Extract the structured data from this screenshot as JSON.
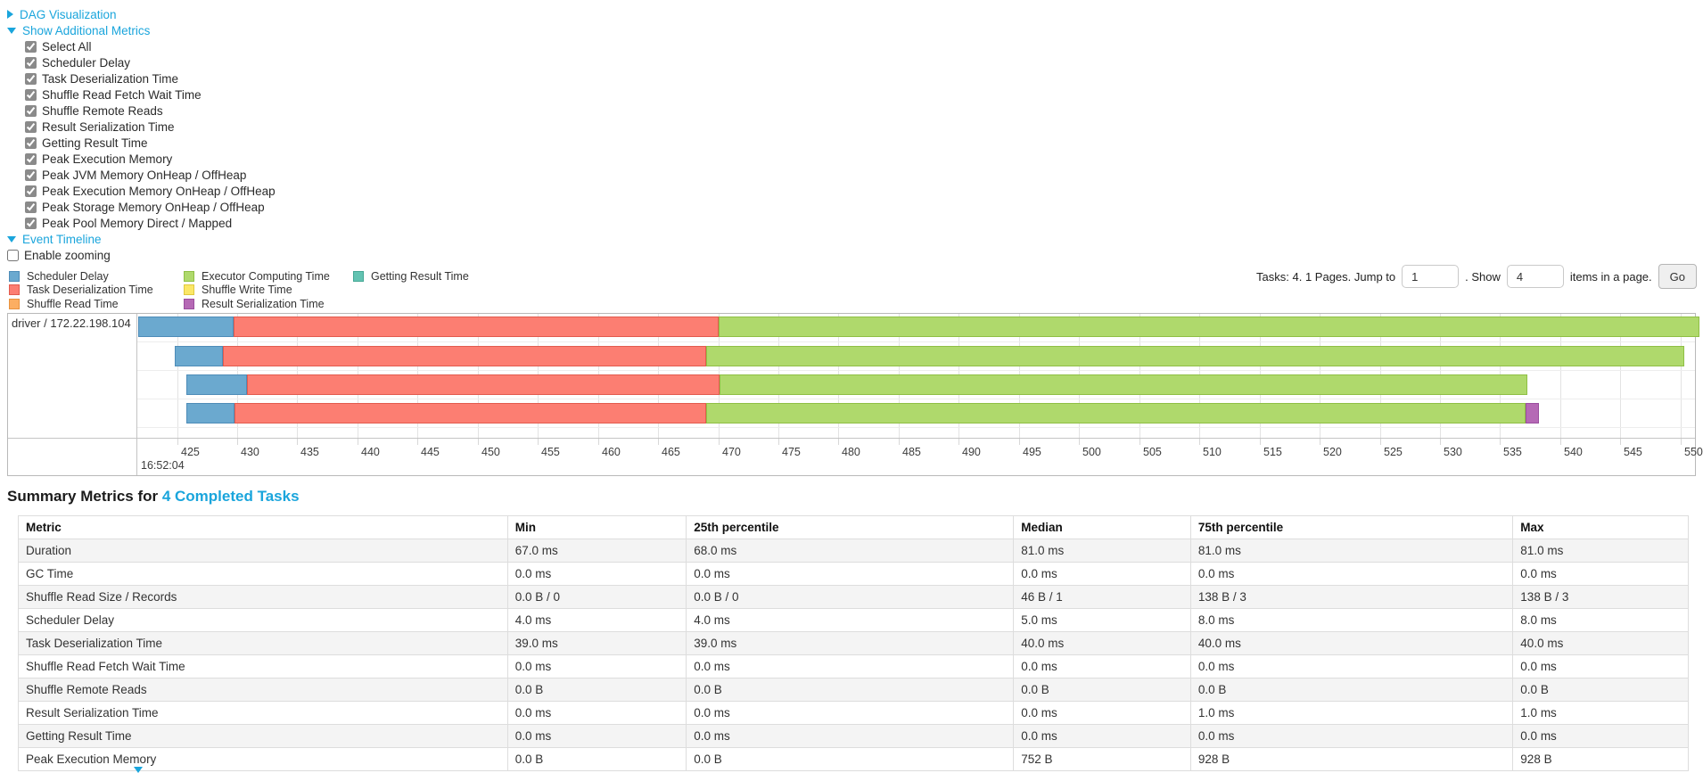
{
  "controls": {
    "dag_label": "DAG Visualization",
    "metrics_toggle_label": "Show Additional Metrics",
    "metrics_checkboxes": [
      "Select All",
      "Scheduler Delay",
      "Task Deserialization Time",
      "Shuffle Read Fetch Wait Time",
      "Shuffle Remote Reads",
      "Result Serialization Time",
      "Getting Result Time",
      "Peak Execution Memory",
      "Peak JVM Memory OnHeap / OffHeap",
      "Peak Execution Memory OnHeap / OffHeap",
      "Peak Storage Memory OnHeap / OffHeap",
      "Peak Pool Memory Direct / Mapped"
    ],
    "event_timeline_label": "Event Timeline",
    "enable_zooming_label": "Enable zooming"
  },
  "legend": {
    "items": [
      {
        "label": "Scheduler Delay",
        "kind": "scheduler_delay"
      },
      {
        "label": "Task Deserialization Time",
        "kind": "task_deserialization"
      },
      {
        "label": "Shuffle Read Time",
        "kind": "shuffle_read"
      },
      {
        "label": "Executor Computing Time",
        "kind": "executor_computing"
      },
      {
        "label": "Shuffle Write Time",
        "kind": "shuffle_write"
      },
      {
        "label": "Result Serialization Time",
        "kind": "result_serialization"
      },
      {
        "label": "Getting Result Time",
        "kind": "getting_result"
      }
    ]
  },
  "pagination": {
    "before_text": "Tasks: 4. 1 Pages. Jump to",
    "jump_value": "1",
    "mid_text": ". Show",
    "show_value": "4",
    "after_text": "items in a page.",
    "go_label": "Go"
  },
  "chart_data": {
    "type": "timeline",
    "row_label": "driver / 172.22.198.104",
    "axis": {
      "start": 421.7,
      "end": 551.2,
      "tick_step": 5,
      "ticks": [
        425,
        430,
        435,
        440,
        445,
        450,
        455,
        460,
        465,
        470,
        475,
        480,
        485,
        490,
        495,
        500,
        505,
        510,
        515,
        520,
        525,
        530,
        535,
        540,
        545,
        550
      ],
      "major_label": "16:52:04"
    },
    "colors": {
      "scheduler_delay": {
        "fill": "#6BA9CF",
        "border": "#4E8CB8"
      },
      "task_deserialization": {
        "fill": "#FC7E72",
        "border": "#E25B4E"
      },
      "shuffle_read": {
        "fill": "#FCAE62",
        "border": "#E8923F"
      },
      "executor_computing": {
        "fill": "#AFD96C",
        "border": "#8FBF45"
      },
      "shuffle_write": {
        "fill": "#FBE767",
        "border": "#E0C93F"
      },
      "result_serialization": {
        "fill": "#B569B5",
        "border": "#9A4E9E"
      },
      "getting_result": {
        "fill": "#63C3B2",
        "border": "#45A895"
      }
    },
    "bars": [
      {
        "segments": [
          {
            "kind": "scheduler_delay",
            "start": 421.8,
            "end": 429.7
          },
          {
            "kind": "task_deserialization",
            "start": 429.7,
            "end": 470.0
          },
          {
            "kind": "executor_computing",
            "start": 470.0,
            "end": 551.6
          }
        ]
      },
      {
        "segments": [
          {
            "kind": "scheduler_delay",
            "start": 424.8,
            "end": 428.8
          },
          {
            "kind": "task_deserialization",
            "start": 428.8,
            "end": 469.0
          },
          {
            "kind": "executor_computing",
            "start": 469.0,
            "end": 550.3
          }
        ]
      },
      {
        "segments": [
          {
            "kind": "scheduler_delay",
            "start": 425.8,
            "end": 430.8
          },
          {
            "kind": "task_deserialization",
            "start": 430.8,
            "end": 470.1
          },
          {
            "kind": "executor_computing",
            "start": 470.1,
            "end": 537.3
          }
        ]
      },
      {
        "segments": [
          {
            "kind": "scheduler_delay",
            "start": 425.8,
            "end": 429.8
          },
          {
            "kind": "task_deserialization",
            "start": 429.8,
            "end": 469.0
          },
          {
            "kind": "executor_computing",
            "start": 469.0,
            "end": 537.1
          },
          {
            "kind": "result_serialization",
            "start": 537.1,
            "end": 538.2
          }
        ]
      }
    ]
  },
  "summary": {
    "heading_prefix": "Summary Metrics for ",
    "heading_link": "4 Completed Tasks",
    "table": {
      "headers": [
        "Metric",
        "Min",
        "25th percentile",
        "Median",
        "75th percentile",
        "Max"
      ],
      "rows": [
        {
          "metric": "Duration",
          "values": [
            "67.0 ms",
            "68.0 ms",
            "81.0 ms",
            "81.0 ms",
            "81.0 ms"
          ]
        },
        {
          "metric": "GC Time",
          "values": [
            "0.0 ms",
            "0.0 ms",
            "0.0 ms",
            "0.0 ms",
            "0.0 ms"
          ]
        },
        {
          "metric": "Shuffle Read Size / Records",
          "values": [
            "0.0 B / 0",
            "0.0 B / 0",
            "46 B / 1",
            "138 B / 3",
            "138 B / 3"
          ]
        },
        {
          "metric": "Scheduler Delay",
          "values": [
            "4.0 ms",
            "4.0 ms",
            "5.0 ms",
            "8.0 ms",
            "8.0 ms"
          ]
        },
        {
          "metric": "Task Deserialization Time",
          "values": [
            "39.0 ms",
            "39.0 ms",
            "40.0 ms",
            "40.0 ms",
            "40.0 ms"
          ]
        },
        {
          "metric": "Shuffle Read Fetch Wait Time",
          "values": [
            "0.0 ms",
            "0.0 ms",
            "0.0 ms",
            "0.0 ms",
            "0.0 ms"
          ]
        },
        {
          "metric": "Shuffle Remote Reads",
          "values": [
            "0.0 B",
            "0.0 B",
            "0.0 B",
            "0.0 B",
            "0.0 B"
          ]
        },
        {
          "metric": "Result Serialization Time",
          "values": [
            "0.0 ms",
            "0.0 ms",
            "0.0 ms",
            "1.0 ms",
            "1.0 ms"
          ]
        },
        {
          "metric": "Getting Result Time",
          "values": [
            "0.0 ms",
            "0.0 ms",
            "0.0 ms",
            "0.0 ms",
            "0.0 ms"
          ]
        },
        {
          "metric": "Peak Execution Memory",
          "values": [
            "0.0 B",
            "0.0 B",
            "752 B",
            "928 B",
            "928 B"
          ]
        }
      ]
    }
  }
}
